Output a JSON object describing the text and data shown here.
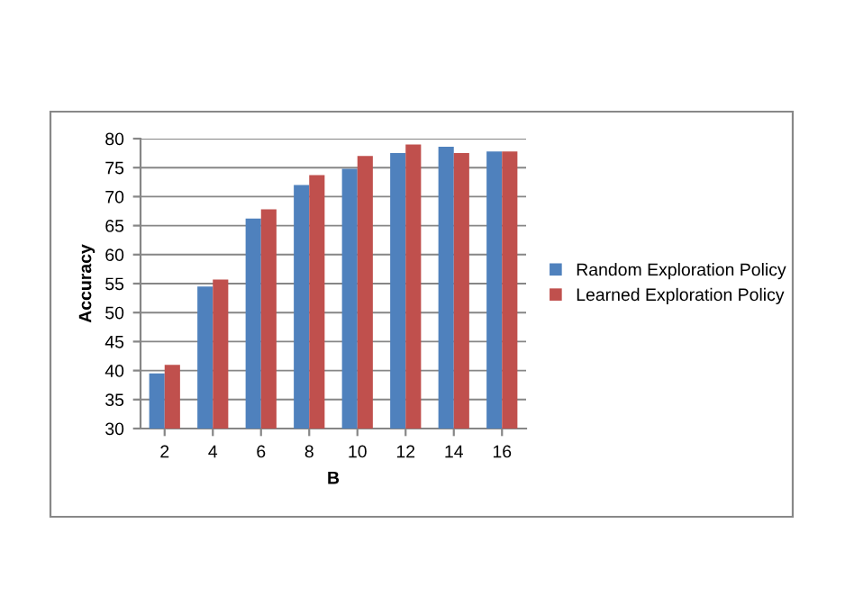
{
  "chart_data": {
    "type": "bar",
    "xlabel": "B",
    "ylabel": "Accuracy",
    "categories": [
      "2",
      "4",
      "6",
      "8",
      "10",
      "12",
      "14",
      "16"
    ],
    "series": [
      {
        "name": "Random Exploration Policy",
        "color": "#4f81bd",
        "values": [
          39.5,
          54.5,
          66.2,
          72,
          74.8,
          77.5,
          78.6,
          77.8
        ]
      },
      {
        "name": "Learned Exploration Policy",
        "color": "#c0504d",
        "values": [
          41,
          55.7,
          67.8,
          73.7,
          77,
          79,
          77.5,
          77.8
        ]
      }
    ],
    "ylim": [
      30,
      80
    ],
    "yticks": [
      30,
      35,
      40,
      45,
      50,
      55,
      60,
      65,
      70,
      75,
      80
    ],
    "grid": "y",
    "legend": "right"
  }
}
